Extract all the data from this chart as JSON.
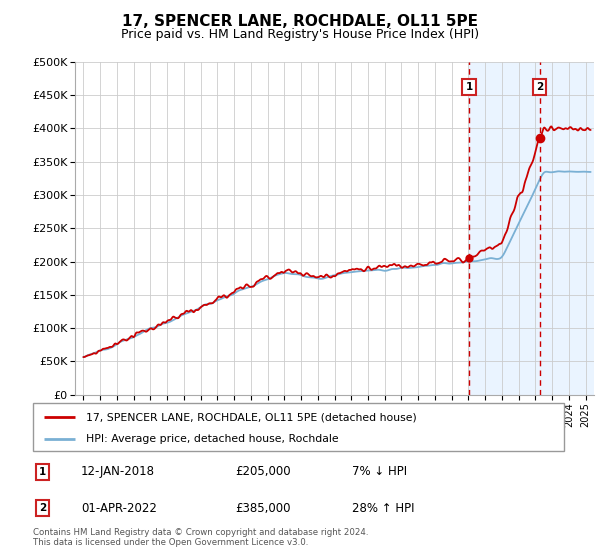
{
  "title": "17, SPENCER LANE, ROCHDALE, OL11 5PE",
  "subtitle": "Price paid vs. HM Land Registry's House Price Index (HPI)",
  "ytick_values": [
    0,
    50000,
    100000,
    150000,
    200000,
    250000,
    300000,
    350000,
    400000,
    450000,
    500000
  ],
  "ylim": [
    0,
    500000
  ],
  "xlim_start": 1994.5,
  "xlim_end": 2025.5,
  "sale1_date": 2018.04,
  "sale1_price": 205000,
  "sale1_label": "1",
  "sale2_date": 2022.25,
  "sale2_price": 385000,
  "sale2_label": "2",
  "legend_line1": "17, SPENCER LANE, ROCHDALE, OL11 5PE (detached house)",
  "legend_line2": "HPI: Average price, detached house, Rochdale",
  "footnote": "Contains HM Land Registry data © Crown copyright and database right 2024.\nThis data is licensed under the Open Government Licence v3.0.",
  "line_color_red": "#cc0000",
  "line_color_blue": "#7ab0d4",
  "grid_color": "#cccccc",
  "dashed_line_color": "#cc0000",
  "highlight_bg": "#ddeeff",
  "title_fontsize": 11,
  "subtitle_fontsize": 9
}
